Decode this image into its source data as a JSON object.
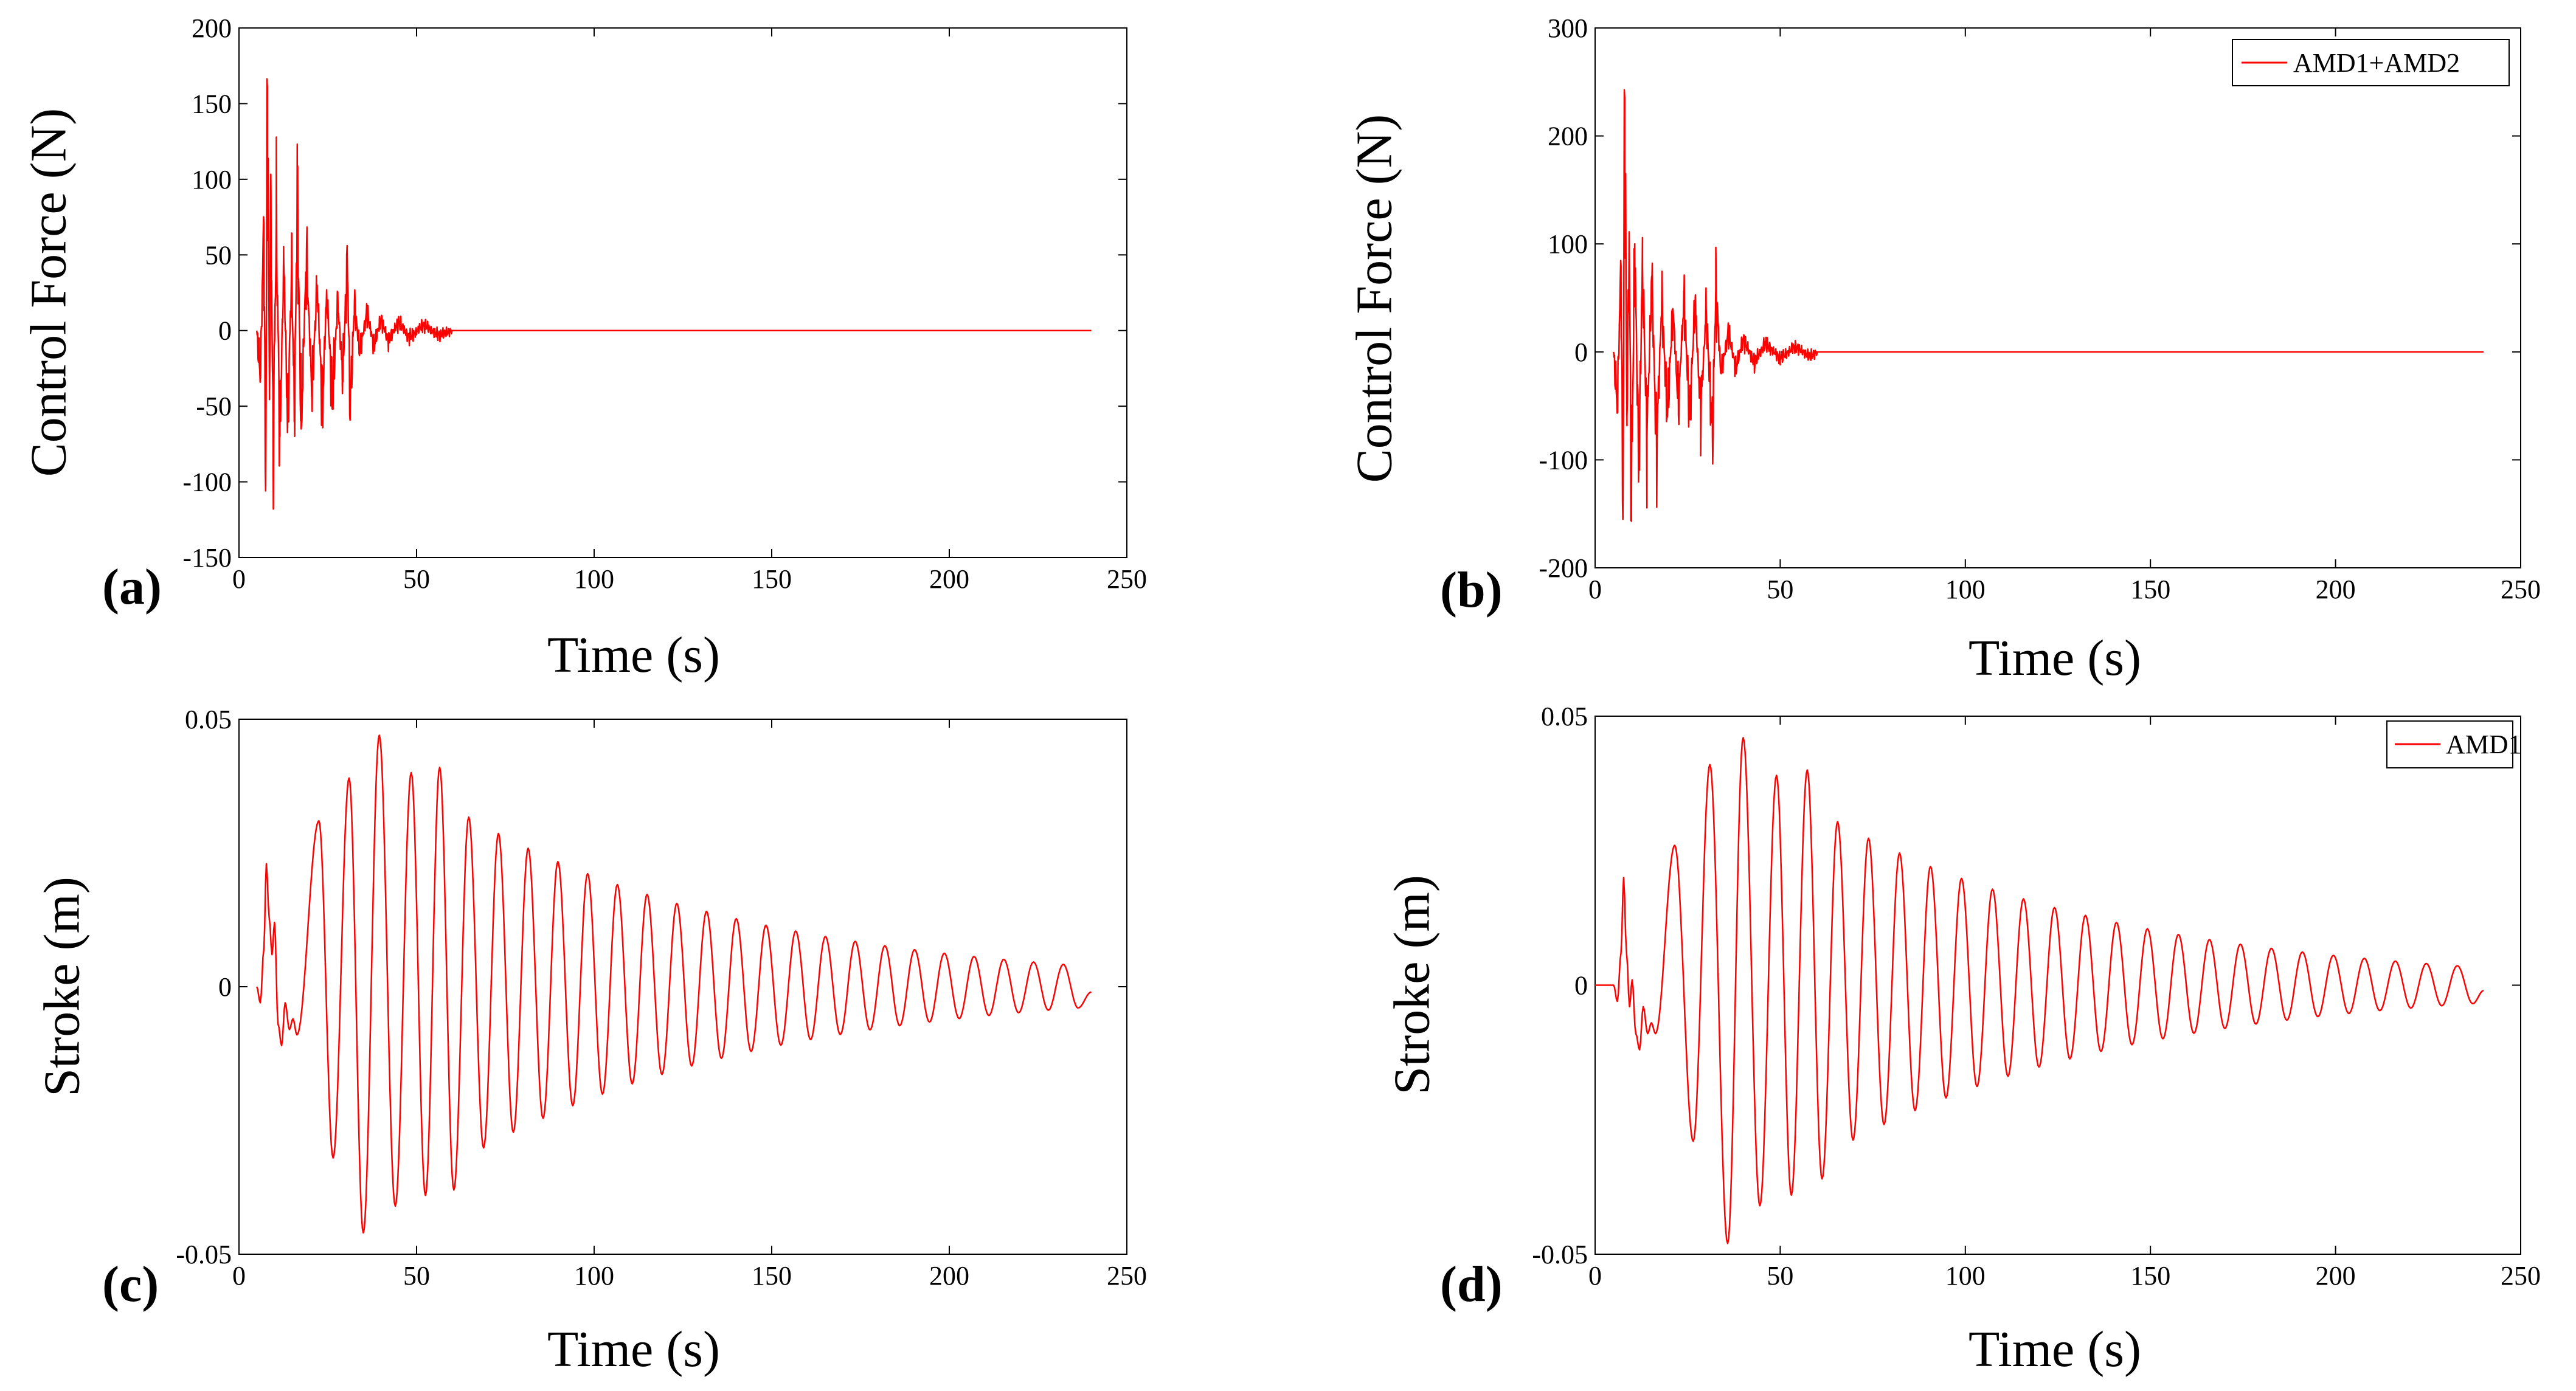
{
  "figure_colors": {
    "series": "#ff0000",
    "axes": "#000000",
    "background": "#ffffff"
  },
  "chart_data": [
    {
      "id": "a",
      "type": "line",
      "panel_tag": "(a)",
      "title": "",
      "xlabel": "Time (s)",
      "ylabel": "Control Force (N)",
      "xlim": [
        0,
        250
      ],
      "ylim": [
        -150,
        200
      ],
      "xticks": [
        "0",
        "50",
        "100",
        "150",
        "200",
        "250"
      ],
      "yticks": [
        "-150",
        "-100",
        "-50",
        "0",
        "50",
        "100",
        "150",
        "200"
      ],
      "legend": null,
      "series": [
        {
          "name": "Control force",
          "kind": "force",
          "t_start": 5,
          "t_end": 240,
          "active_until": 60,
          "points": [
            [
              5,
              0
            ],
            [
              6,
              -30
            ],
            [
              7,
              70
            ],
            [
              7.5,
              -106
            ],
            [
              8,
              161
            ],
            [
              8.6,
              -40
            ],
            [
              9,
              90
            ],
            [
              9.6,
              -82
            ],
            [
              10.5,
              74
            ],
            [
              11.5,
              -70
            ],
            [
              12.6,
              45
            ],
            [
              13.7,
              -60
            ],
            [
              14.8,
              40
            ],
            [
              15.6,
              -55
            ],
            [
              16.4,
              88
            ],
            [
              17.5,
              -65
            ],
            [
              19,
              50
            ],
            [
              20.5,
              -40
            ],
            [
              22,
              30
            ],
            [
              23.5,
              -50
            ],
            [
              24.7,
              25
            ],
            [
              26.3,
              -45
            ],
            [
              27.8,
              20
            ],
            [
              29.2,
              -30
            ],
            [
              30.5,
              46
            ],
            [
              31.3,
              -52
            ],
            [
              32.5,
              18
            ],
            [
              34,
              -15
            ],
            [
              36,
              12
            ],
            [
              38,
              -10
            ],
            [
              40,
              8
            ],
            [
              42,
              -7
            ],
            [
              45,
              6
            ],
            [
              48,
              -5
            ],
            [
              52,
              4
            ],
            [
              56,
              -3
            ],
            [
              60,
              0
            ],
            [
              240,
              0
            ]
          ]
        }
      ]
    },
    {
      "id": "b",
      "type": "line",
      "panel_tag": "(b)",
      "title": "",
      "xlabel": "Time (s)",
      "ylabel": "Control Force (N)",
      "xlim": [
        0,
        250
      ],
      "ylim": [
        -200,
        300
      ],
      "xticks": [
        "0",
        "50",
        "100",
        "150",
        "200",
        "250"
      ],
      "yticks": [
        "-200",
        "-100",
        "0",
        "100",
        "200",
        "300"
      ],
      "legend": {
        "entries": [
          "AMD1+AMD2"
        ],
        "location": "top-right"
      },
      "series": [
        {
          "name": "AMD1+AMD2",
          "kind": "force",
          "t_start": 5,
          "t_end": 240,
          "active_until": 60,
          "points": [
            [
              5,
              0
            ],
            [
              6,
              -50
            ],
            [
              7,
              80
            ],
            [
              7.5,
              -155
            ],
            [
              8,
              235
            ],
            [
              8.6,
              -60
            ],
            [
              9.2,
              110
            ],
            [
              9.8,
              -140
            ],
            [
              10.7,
              100
            ],
            [
              11.8,
              -110
            ],
            [
              12.8,
              80
            ],
            [
              14,
              -80
            ],
            [
              15.3,
              70
            ],
            [
              16.6,
              -90
            ],
            [
              18,
              50
            ],
            [
              19.5,
              -60
            ],
            [
              21,
              40
            ],
            [
              22.5,
              -50
            ],
            [
              24,
              50
            ],
            [
              25.5,
              -60
            ],
            [
              27,
              45
            ],
            [
              28.5,
              -55
            ],
            [
              30,
              40
            ],
            [
              31.7,
              -80
            ],
            [
              32.6,
              60
            ],
            [
              34,
              -20
            ],
            [
              36,
              18
            ],
            [
              38,
              -15
            ],
            [
              40,
              12
            ],
            [
              43,
              -10
            ],
            [
              46,
              8
            ],
            [
              50,
              -6
            ],
            [
              54,
              5
            ],
            [
              58,
              -4
            ],
            [
              60,
              0
            ],
            [
              240,
              0
            ]
          ]
        }
      ]
    },
    {
      "id": "c",
      "type": "line",
      "panel_tag": "(c)",
      "title": "",
      "xlabel": "Time (s)",
      "ylabel": "Stroke (m)",
      "xlim": [
        0,
        250
      ],
      "ylim": [
        -0.05,
        0.05
      ],
      "xticks": [
        "0",
        "50",
        "100",
        "150",
        "200",
        "250"
      ],
      "yticks": [
        "-0.05",
        "0",
        "0.05"
      ],
      "legend": null,
      "series": [
        {
          "name": "Stroke",
          "kind": "stroke",
          "t_start": 5,
          "t_end": 240,
          "period": 8.37,
          "early": [
            [
              5,
              0
            ],
            [
              6,
              -0.003
            ],
            [
              7,
              0.007
            ],
            [
              7.7,
              0.023
            ],
            [
              8.5,
              0.013
            ],
            [
              9.3,
              0.006
            ],
            [
              10,
              0.012
            ],
            [
              11,
              -0.007
            ],
            [
              12,
              -0.011
            ],
            [
              13,
              -0.003
            ],
            [
              14.2,
              -0.008
            ],
            [
              15.2,
              -0.006
            ],
            [
              16.3,
              -0.009
            ]
          ],
          "peaks": [
            [
              22.5,
              0.031
            ],
            [
              26.5,
              -0.032
            ],
            [
              31,
              0.039
            ],
            [
              35,
              -0.046
            ],
            [
              39.5,
              0.047
            ],
            [
              44,
              -0.041
            ],
            [
              48.5,
              0.04
            ],
            [
              52.5,
              -0.039
            ],
            [
              56.5,
              0.041
            ],
            [
              60.5,
              -0.038
            ],
            [
              240,
              -0.001
            ]
          ],
          "envelope": {
            "t0": 39.5,
            "a0": 0.043,
            "t1": 235.5,
            "a1": 0.004
          }
        }
      ]
    },
    {
      "id": "d",
      "type": "line",
      "panel_tag": "(d)",
      "title": "",
      "xlabel": "Time (s)",
      "ylabel": "Stroke (m)",
      "xlim": [
        0,
        250
      ],
      "ylim": [
        -0.05,
        0.05
      ],
      "xticks": [
        "0",
        "50",
        "100",
        "150",
        "200",
        "250"
      ],
      "yticks": [
        "-0.05",
        "0",
        "0.05"
      ],
      "legend": {
        "entries": [
          "AMD1"
        ],
        "location": "top-right"
      },
      "series": [
        {
          "name": "AMD1",
          "kind": "stroke",
          "t_start": 0,
          "t_end": 240,
          "period": 8.37,
          "early": [
            [
              0,
              0
            ],
            [
              5,
              0
            ],
            [
              6,
              -0.003
            ],
            [
              7,
              0.006
            ],
            [
              7.7,
              0.02
            ],
            [
              8.5,
              0.006
            ],
            [
              9.3,
              -0.004
            ],
            [
              10,
              0.001
            ],
            [
              11,
              -0.009
            ],
            [
              12,
              -0.012
            ],
            [
              13,
              -0.004
            ],
            [
              14.2,
              -0.009
            ],
            [
              15.2,
              -0.007
            ],
            [
              16.3,
              -0.009
            ]
          ],
          "peaks": [
            [
              21.5,
              0.026
            ],
            [
              26.5,
              -0.029
            ],
            [
              31,
              0.041
            ],
            [
              35.8,
              -0.048
            ],
            [
              40,
              0.046
            ],
            [
              44.5,
              -0.041
            ],
            [
              49,
              0.039
            ],
            [
              53,
              -0.039
            ],
            [
              57.3,
              0.04
            ],
            [
              61.3,
              -0.036
            ],
            [
              240,
              -0.001
            ]
          ],
          "envelope": {
            "t0": 40,
            "a0": 0.042,
            "t1": 235.5,
            "a1": 0.0035
          }
        }
      ]
    }
  ]
}
